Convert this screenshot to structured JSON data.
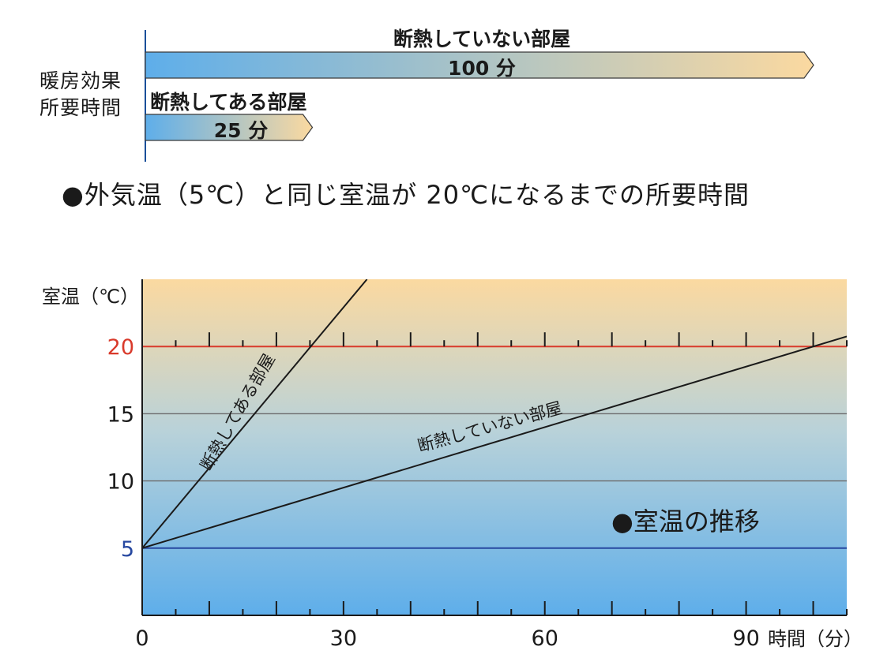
{
  "bar_section": {
    "category_label_line1": "暖房効果",
    "category_label_line2": "所要時間",
    "bar_uninsulated": {
      "label": "断熱していない部屋",
      "value_text": "100 分",
      "value": 100
    },
    "bar_insulated": {
      "label": "断熱してある部屋",
      "value_text": "25 分",
      "value": 25
    }
  },
  "section_title": "●外気温（5℃）と同じ室温が 20℃になるまでの所要時間",
  "colors": {
    "warm": "#fbd9a0",
    "cool": "#5eaeea",
    "line_20": "#d93a2b",
    "line_5": "#2748a0",
    "axis": "#1a1a1a",
    "grid": "#6d6d6d"
  },
  "chart_data": [
    {
      "type": "bar",
      "orientation": "horizontal",
      "title": "",
      "ylabel": "暖房効果 所要時間",
      "categories": [
        "断熱していない部屋",
        "断熱してある部屋"
      ],
      "values": [
        100,
        25
      ],
      "value_labels": [
        "100 分",
        "25 分"
      ]
    },
    {
      "type": "line",
      "xlabel": "時間（分）",
      "ylabel": "室温（℃）",
      "xlim": [
        0,
        105
      ],
      "ylim": [
        0,
        25
      ],
      "x_ticks": [
        0,
        30,
        60,
        90
      ],
      "y_ticks": [
        5,
        10,
        15,
        20
      ],
      "grid": true,
      "annotation": "●室温の推移",
      "series": [
        {
          "name": "断熱してある部屋",
          "x": [
            0,
            33.5
          ],
          "y": [
            5,
            25
          ],
          "color": "#1a1a1a"
        },
        {
          "name": "断熱していない部屋",
          "x": [
            0,
            105
          ],
          "y": [
            5,
            20.75
          ],
          "color": "#1a1a1a"
        }
      ]
    }
  ]
}
